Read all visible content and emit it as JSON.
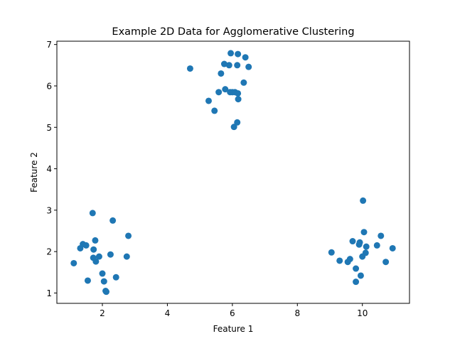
{
  "chart_data": {
    "type": "scatter",
    "title": "Example 2D Data for Agglomerative Clustering",
    "xlabel": "Feature 1",
    "ylabel": "Feature 2",
    "xlim": [
      0.6,
      11.45
    ],
    "ylim": [
      0.75,
      7.08
    ],
    "xticks": [
      2,
      4,
      6,
      8,
      10
    ],
    "yticks": [
      1,
      2,
      3,
      4,
      5,
      6,
      7
    ],
    "grid": false,
    "marker_color": "#1f77b4",
    "points": [
      [
        1.12,
        1.72
      ],
      [
        1.32,
        2.08
      ],
      [
        1.4,
        2.18
      ],
      [
        1.5,
        2.15
      ],
      [
        1.55,
        1.3
      ],
      [
        1.7,
        2.93
      ],
      [
        1.72,
        1.85
      ],
      [
        1.73,
        2.05
      ],
      [
        1.78,
        2.27
      ],
      [
        1.8,
        1.76
      ],
      [
        1.9,
        1.88
      ],
      [
        2.0,
        1.47
      ],
      [
        2.05,
        1.28
      ],
      [
        2.1,
        1.05
      ],
      [
        2.12,
        1.03
      ],
      [
        2.25,
        1.93
      ],
      [
        2.32,
        2.75
      ],
      [
        2.42,
        1.38
      ],
      [
        2.75,
        1.88
      ],
      [
        2.8,
        2.38
      ],
      [
        4.7,
        6.42
      ],
      [
        5.27,
        5.64
      ],
      [
        5.45,
        5.4
      ],
      [
        5.58,
        5.85
      ],
      [
        5.65,
        6.3
      ],
      [
        5.75,
        6.53
      ],
      [
        5.78,
        5.92
      ],
      [
        5.9,
        6.5
      ],
      [
        5.93,
        5.85
      ],
      [
        5.95,
        6.79
      ],
      [
        6.0,
        5.85
      ],
      [
        6.05,
        5.01
      ],
      [
        6.08,
        5.85
      ],
      [
        6.15,
        5.12
      ],
      [
        6.15,
        6.5
      ],
      [
        6.17,
        5.82
      ],
      [
        6.17,
        6.77
      ],
      [
        6.18,
        5.68
      ],
      [
        6.35,
        6.08
      ],
      [
        6.4,
        6.69
      ],
      [
        6.5,
        6.46
      ],
      [
        9.05,
        1.98
      ],
      [
        9.3,
        1.78
      ],
      [
        9.55,
        1.75
      ],
      [
        9.62,
        1.82
      ],
      [
        9.7,
        2.25
      ],
      [
        9.8,
        1.27
      ],
      [
        9.8,
        1.59
      ],
      [
        9.9,
        2.17
      ],
      [
        9.92,
        2.22
      ],
      [
        9.95,
        1.42
      ],
      [
        10.0,
        1.88
      ],
      [
        10.02,
        3.23
      ],
      [
        10.05,
        2.47
      ],
      [
        10.1,
        1.97
      ],
      [
        10.12,
        2.12
      ],
      [
        10.45,
        2.15
      ],
      [
        10.57,
        2.38
      ],
      [
        10.72,
        1.75
      ],
      [
        10.93,
        2.08
      ]
    ]
  }
}
